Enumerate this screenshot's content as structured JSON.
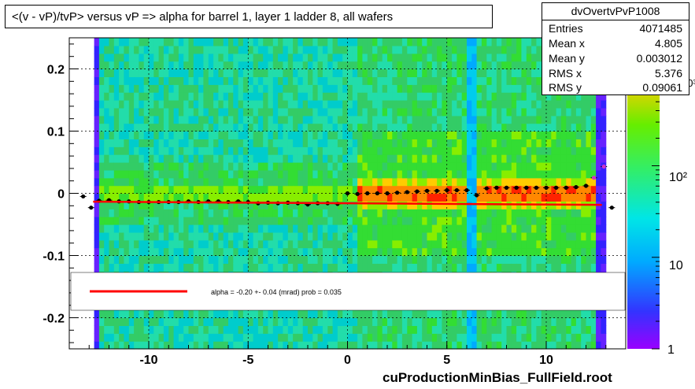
{
  "title": "<(v - vP)/tvP> versus   vP => alpha for barrel 1, layer 1 ladder 8, all wafers",
  "stats": {
    "name": "dvOvertvPvP1008",
    "rows": [
      {
        "label": "Entries",
        "value": "4071485"
      },
      {
        "label": "Mean x",
        "value": "4.805"
      },
      {
        "label": "Mean y",
        "value": "0.003012"
      },
      {
        "label": "RMS x",
        "value": "5.376"
      },
      {
        "label": "RMS y",
        "value": "0.09061"
      }
    ]
  },
  "legend": {
    "fit_text": "alpha =   -0.20 +-  0.04 (mrad) prob = 0.035",
    "line_color": "#ff0000"
  },
  "footer": "cuProductionMinBias_FullField.root",
  "colors": {
    "fit_line": "#ff0000",
    "profile_points": "#000000",
    "profile_markers_alt": "#cc33cc",
    "background_green": "#33cc33",
    "cyan": "#00e6e6"
  },
  "chart_data": {
    "type": "heatmap",
    "xlim": [
      -14,
      14
    ],
    "ylim": [
      -0.25,
      0.25
    ],
    "x_ticks": [
      -10,
      -5,
      0,
      5,
      10
    ],
    "x_tick_labels": [
      "-10",
      "-5",
      "0",
      "5",
      "10"
    ],
    "y_ticks": [
      0.2,
      0.1,
      0,
      -0.1,
      -0.2
    ],
    "y_tick_labels": [
      "0.2",
      "0.1",
      "0",
      "-0.1",
      "-0.2"
    ],
    "grid": true,
    "colorbar": {
      "scale": "log",
      "range": [
        1,
        2500
      ],
      "tick_labels": [
        "1",
        "10",
        "10²",
        "10³"
      ]
    },
    "profile": {
      "x": [
        -13.3,
        -12.9,
        -12.5,
        -12.0,
        -11.5,
        -11.0,
        -10.5,
        -10.0,
        -9.5,
        -9.0,
        -8.5,
        -8.0,
        -7.5,
        -7.0,
        -6.5,
        -6.0,
        -5.5,
        -5.0,
        -4.5,
        -4.0,
        -3.5,
        -3.0,
        -2.5,
        -2.0,
        -1.5,
        -1.0,
        -0.5,
        0.0,
        0.5,
        1.0,
        1.5,
        2.0,
        2.5,
        3.0,
        3.5,
        4.0,
        4.5,
        5.0,
        5.5,
        6.0,
        6.5,
        7.0,
        7.5,
        8.0,
        8.5,
        9.0,
        9.5,
        10.0,
        10.5,
        11.0,
        11.5,
        12.0,
        12.4,
        12.9,
        13.3
      ],
      "y": [
        -0.005,
        -0.023,
        -0.012,
        -0.011,
        -0.013,
        -0.013,
        -0.014,
        -0.014,
        -0.014,
        -0.014,
        -0.014,
        -0.013,
        -0.014,
        -0.013,
        -0.013,
        -0.014,
        -0.013,
        -0.014,
        -0.016,
        -0.015,
        -0.016,
        -0.015,
        -0.016,
        -0.018,
        -0.016,
        -0.016,
        -0.017,
        0.0,
        -0.001,
        0.0,
        0.0,
        0.0,
        0.001,
        0.002,
        0.003,
        0.004,
        0.004,
        0.005,
        0.005,
        0.005,
        -0.003,
        0.008,
        0.009,
        0.009,
        0.009,
        0.009,
        0.009,
        0.009,
        0.009,
        0.009,
        0.01,
        0.012,
        0.025,
        0.043,
        -0.023
      ]
    },
    "fit": {
      "name": "alpha",
      "slope_mrad": -0.2,
      "error_mrad": 0.04,
      "prob": 0.035,
      "x_range": [
        -12.8,
        12.8
      ],
      "y_at_zero": -0.016
    }
  }
}
